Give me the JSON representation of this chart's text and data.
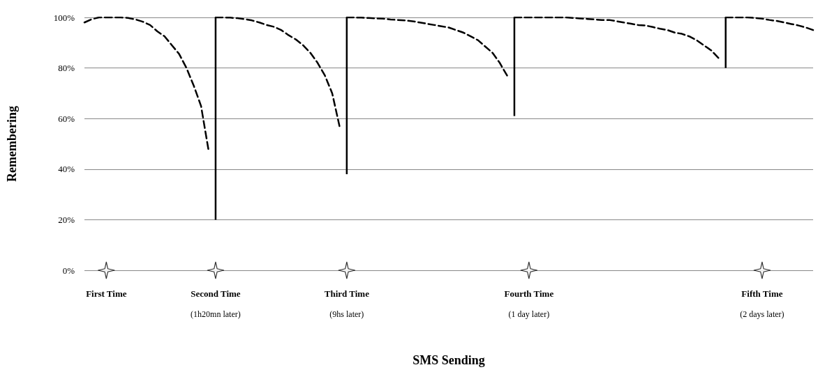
{
  "chart_data": {
    "type": "line",
    "xlabel": "SMS Sending",
    "ylabel": "Remembering",
    "categories": [
      null,
      null,
      null,
      "First Time",
      null,
      null,
      null,
      null,
      null,
      null,
      null,
      null,
      null,
      null,
      null,
      null,
      null,
      null,
      "Second Time\n(1h20mn later)",
      null,
      null,
      null,
      null,
      null,
      null,
      null,
      null,
      null,
      null,
      null,
      null,
      null,
      null,
      null,
      null,
      null,
      "Third Time\n(9hs later)",
      null,
      null,
      null,
      null,
      null,
      null,
      null,
      null,
      null,
      null,
      null,
      null,
      null,
      null,
      null,
      null,
      null,
      null,
      null,
      null,
      null,
      null,
      null,
      null,
      "Fourth Time\n(1 day later)",
      null,
      null,
      null,
      null,
      null,
      null,
      null,
      null,
      null,
      null,
      null,
      null,
      null,
      null,
      null,
      null,
      null,
      null,
      null,
      null,
      null,
      null,
      null,
      null,
      null,
      null,
      null,
      null,
      null,
      null,
      null,
      "Fifth Time\n(2 days later)",
      null,
      null,
      null,
      null,
      null,
      null,
      null
    ],
    "ylim": [
      0,
      100
    ],
    "yticks": [
      {
        "value": 0,
        "label": "0%"
      },
      {
        "value": 20,
        "label": "20%"
      },
      {
        "value": 40,
        "label": "40%"
      },
      {
        "value": 60,
        "label": "60%"
      },
      {
        "value": 80,
        "label": "80%"
      },
      {
        "value": 100,
        "label": "100%"
      }
    ],
    "grid": "y",
    "series": [
      {
        "color": "#000000",
        "line_style": "dashed",
        "values": [
          98,
          99.3,
          100,
          100,
          100,
          100,
          99.8,
          99.2,
          98.3,
          97,
          94.5,
          92.5,
          89,
          85.5,
          80,
          73,
          65,
          48,
          null,
          null,
          null,
          null,
          null,
          null,
          null,
          null,
          null,
          null,
          null,
          null,
          null,
          null,
          null,
          null,
          null,
          null,
          null,
          null,
          null,
          null,
          null,
          null,
          null,
          null,
          null,
          null,
          null,
          null,
          null,
          null,
          null,
          null,
          null,
          null,
          null,
          null,
          null,
          null,
          null,
          null,
          null,
          null,
          null,
          null,
          null,
          null,
          null,
          null,
          null,
          null,
          null,
          null,
          null,
          null,
          null,
          null,
          null,
          null,
          null,
          null,
          null,
          null,
          null,
          null,
          null,
          null,
          null,
          null,
          null,
          null,
          null,
          null,
          null,
          null,
          null,
          null,
          null,
          null,
          null,
          null,
          null
        ]
      },
      {
        "color": "#000000",
        "line_style": "dashed",
        "values": [
          null,
          null,
          null,
          null,
          null,
          null,
          null,
          null,
          null,
          null,
          null,
          null,
          null,
          null,
          null,
          null,
          null,
          null,
          100,
          100,
          99.9,
          99.7,
          99.3,
          98.8,
          98,
          97,
          96.3,
          95,
          93,
          91.3,
          89,
          86,
          82,
          77,
          70,
          57,
          null,
          null,
          null,
          null,
          null,
          null,
          null,
          null,
          null,
          null,
          null,
          null,
          null,
          null,
          null,
          null,
          null,
          null,
          null,
          null,
          null,
          null,
          null,
          null,
          null,
          null,
          null,
          null,
          null,
          null,
          null,
          null,
          null,
          null,
          null,
          null,
          null,
          null,
          null,
          null,
          null,
          null,
          null,
          null,
          null,
          null,
          null,
          null,
          null,
          null,
          null,
          null,
          null,
          null,
          null,
          null,
          null,
          null,
          null,
          null,
          null,
          null,
          null,
          null,
          null
        ]
      },
      {
        "color": "#000000",
        "line_style": "dashed",
        "values": [
          null,
          null,
          null,
          null,
          null,
          null,
          null,
          null,
          null,
          null,
          null,
          null,
          null,
          null,
          null,
          null,
          null,
          null,
          null,
          null,
          null,
          null,
          null,
          null,
          null,
          null,
          null,
          null,
          null,
          null,
          null,
          null,
          null,
          null,
          null,
          null,
          100,
          100,
          99.9,
          99.8,
          99.6,
          99.5,
          99.2,
          99,
          98.8,
          98.5,
          98,
          97.5,
          97,
          96.5,
          96,
          95,
          94,
          92.5,
          91,
          88.5,
          86,
          82,
          77,
          null,
          null,
          null,
          null,
          null,
          null,
          null,
          null,
          null,
          null,
          null,
          null,
          null,
          null,
          null,
          null,
          null,
          null,
          null,
          null,
          null,
          null,
          null,
          null,
          null,
          null,
          null,
          null,
          null,
          null,
          null,
          null,
          null,
          null,
          null,
          null,
          null,
          null,
          null,
          null,
          null,
          null
        ]
      },
      {
        "color": "#000000",
        "line_style": "dashed",
        "values": [
          null,
          null,
          null,
          null,
          null,
          null,
          null,
          null,
          null,
          null,
          null,
          null,
          null,
          null,
          null,
          null,
          null,
          null,
          null,
          null,
          null,
          null,
          null,
          null,
          null,
          null,
          null,
          null,
          null,
          null,
          null,
          null,
          null,
          null,
          null,
          null,
          null,
          null,
          null,
          null,
          null,
          null,
          null,
          null,
          null,
          null,
          null,
          null,
          null,
          null,
          null,
          null,
          null,
          null,
          null,
          null,
          null,
          null,
          null,
          100,
          100,
          100,
          100,
          100,
          100,
          100,
          100,
          99.8,
          99.6,
          99.4,
          99.2,
          99,
          99,
          98.5,
          98,
          97.5,
          97,
          96.8,
          96.2,
          95.5,
          95,
          94,
          93.5,
          92.5,
          91,
          89,
          87,
          84,
          null,
          null,
          null,
          null,
          null,
          null,
          null,
          null,
          null,
          null,
          null,
          null,
          null
        ]
      },
      {
        "color": "#000000",
        "line_style": "dashed",
        "values": [
          null,
          null,
          null,
          null,
          null,
          null,
          null,
          null,
          null,
          null,
          null,
          null,
          null,
          null,
          null,
          null,
          null,
          null,
          null,
          null,
          null,
          null,
          null,
          null,
          null,
          null,
          null,
          null,
          null,
          null,
          null,
          null,
          null,
          null,
          null,
          null,
          null,
          null,
          null,
          null,
          null,
          null,
          null,
          null,
          null,
          null,
          null,
          null,
          null,
          null,
          null,
          null,
          null,
          null,
          null,
          null,
          null,
          null,
          null,
          null,
          null,
          null,
          null,
          null,
          null,
          null,
          null,
          null,
          null,
          null,
          null,
          null,
          null,
          null,
          null,
          null,
          null,
          null,
          null,
          null,
          null,
          null,
          null,
          null,
          null,
          null,
          null,
          null,
          100,
          100,
          100,
          100,
          99.8,
          99.5,
          99,
          98.6,
          98,
          97.4,
          96.8,
          96,
          95
        ]
      },
      {
        "type": "bar",
        "color": "#000000",
        "values": [
          null,
          null,
          null,
          null,
          null,
          null,
          null,
          null,
          null,
          null,
          null,
          null,
          null,
          null,
          null,
          null,
          null,
          null,
          80,
          null,
          null,
          null,
          null,
          null,
          null,
          null,
          null,
          null,
          null,
          null,
          null,
          null,
          null,
          null,
          null,
          null,
          62,
          null,
          null,
          null,
          null,
          null,
          null,
          null,
          null,
          null,
          null,
          null,
          null,
          null,
          null,
          null,
          null,
          null,
          null,
          null,
          null,
          null,
          null,
          39,
          null,
          null,
          null,
          null,
          null,
          null,
          null,
          null,
          null,
          null,
          null,
          null,
          null,
          null,
          null,
          null,
          null,
          null,
          null,
          null,
          null,
          null,
          null,
          null,
          null,
          null,
          null,
          null,
          20,
          null,
          null,
          null,
          null,
          null,
          null,
          null,
          null,
          null,
          null,
          null,
          null
        ],
        "base": [
          null,
          null,
          null,
          null,
          null,
          null,
          null,
          null,
          null,
          null,
          null,
          null,
          null,
          null,
          null,
          null,
          null,
          null,
          20,
          null,
          null,
          null,
          null,
          null,
          null,
          null,
          null,
          null,
          null,
          null,
          null,
          null,
          null,
          null,
          null,
          null,
          38,
          null,
          null,
          null,
          null,
          null,
          null,
          null,
          null,
          null,
          null,
          null,
          null,
          null,
          null,
          null,
          null,
          null,
          null,
          null,
          null,
          null,
          null,
          61,
          null,
          null,
          null,
          null,
          null,
          null,
          null,
          null,
          null,
          null,
          null,
          null,
          null,
          null,
          null,
          null,
          null,
          null,
          null,
          null,
          null,
          null,
          null,
          null,
          null,
          null,
          null,
          null,
          80,
          null,
          null,
          null,
          null,
          null,
          null,
          null,
          null,
          null,
          null,
          null,
          null
        ]
      },
      {
        "type": "scatter",
        "color": "#000000",
        "marker": "star",
        "values": [
          null,
          null,
          null,
          0,
          null,
          null,
          null,
          null,
          null,
          null,
          null,
          null,
          null,
          null,
          null,
          null,
          null,
          null,
          0,
          null,
          null,
          null,
          null,
          null,
          null,
          null,
          null,
          null,
          null,
          null,
          null,
          null,
          null,
          null,
          null,
          null,
          0,
          null,
          null,
          null,
          null,
          null,
          null,
          null,
          null,
          null,
          null,
          null,
          null,
          null,
          null,
          null,
          null,
          null,
          null,
          null,
          null,
          null,
          null,
          null,
          null,
          0,
          null,
          null,
          null,
          null,
          null,
          null,
          null,
          null,
          null,
          null,
          null,
          null,
          null,
          null,
          null,
          null,
          null,
          null,
          null,
          null,
          null,
          null,
          null,
          null,
          null,
          null,
          null,
          null,
          null,
          null,
          null,
          0,
          null,
          null,
          null,
          null,
          null,
          null,
          null
        ]
      }
    ]
  }
}
